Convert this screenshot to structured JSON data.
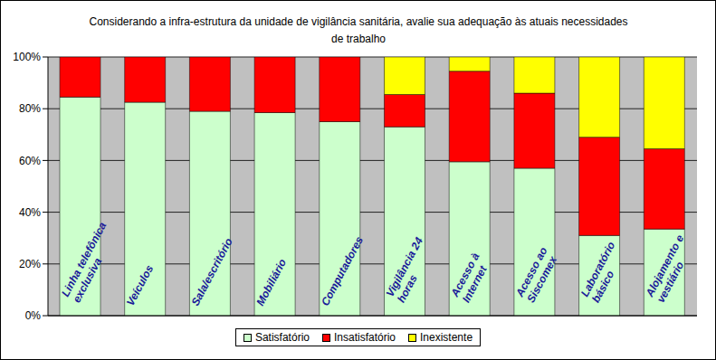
{
  "chart_data": {
    "type": "bar",
    "title": "Considerando a infra-estrutura da unidade de vigilância sanitária, avalie sua adequação às atuais necessidades de trabalho",
    "stacked": true,
    "grid": true,
    "legend": "bottom",
    "categories": [
      "Linha telefônica exclusiva",
      "Veículos",
      "Sala/escritório",
      "Mobiliário",
      "Computadores",
      "Vigilância 24 horas",
      "Acesso à Internet",
      "Acesso ao Siscomex",
      "Laboratório básico",
      "Alojamento e vestiário"
    ],
    "series": [
      {
        "name": "Satisfatório",
        "color": "#ccffcc",
        "values": [
          84.5,
          82.5,
          79,
          78.5,
          75,
          73,
          59.5,
          57,
          31,
          33.5
        ]
      },
      {
        "name": "Insatisfatório",
        "color": "#ff0000",
        "values": [
          15.5,
          17.5,
          21,
          21.5,
          25,
          12.5,
          35,
          29,
          38,
          31
        ]
      },
      {
        "name": "Inexistente",
        "color": "#ffff00",
        "values": [
          0,
          0,
          0,
          0,
          0,
          14.5,
          5.5,
          14,
          31,
          35.5
        ]
      }
    ],
    "ylim": [
      0,
      100
    ],
    "yticks": [
      {
        "value": 0,
        "label": "0%"
      },
      {
        "value": 20,
        "label": "20%"
      },
      {
        "value": 40,
        "label": "40%"
      },
      {
        "value": 60,
        "label": "60%"
      },
      {
        "value": 80,
        "label": "80%"
      },
      {
        "value": 100,
        "label": "100%"
      }
    ]
  }
}
